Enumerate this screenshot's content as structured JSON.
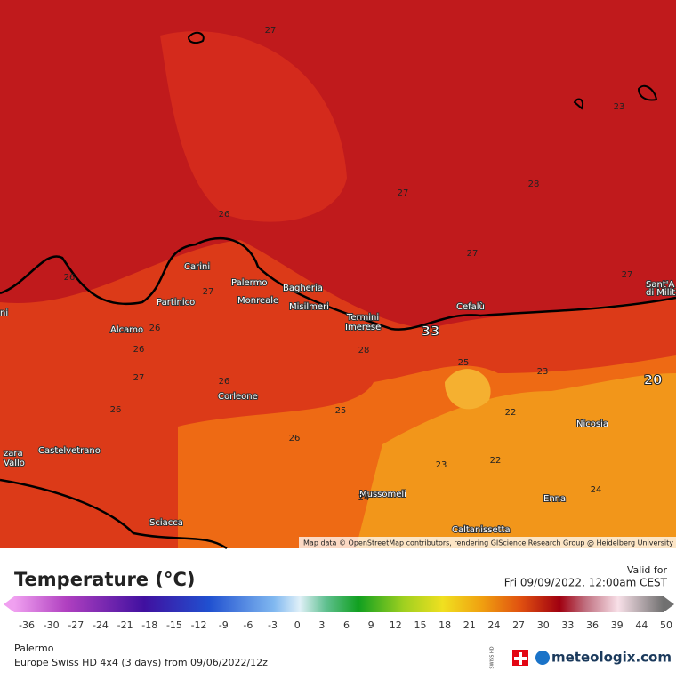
{
  "map": {
    "cities": [
      "Carini",
      "Palermo",
      "Bagheria",
      "Partinico",
      "Monreale",
      "Misilmeri",
      "Termini",
      "Imerese",
      "Cefalù",
      "Alcamo",
      "Corleone",
      "Castelvetrano",
      "zara",
      "Vallo",
      "Sciacca",
      "Mussomeli",
      "Caltanissetta",
      "Enna",
      "Nicosia",
      "Sant'A",
      "di Milit",
      "ni"
    ],
    "isolines": [
      "27",
      "26",
      "27",
      "28",
      "27",
      "27",
      "23",
      "26",
      "27",
      "26",
      "26",
      "27",
      "26",
      "25",
      "26",
      "28",
      "26",
      "25",
      "23",
      "22",
      "23",
      "22",
      "24",
      "24",
      "33",
      "20"
    ],
    "attribution": "Map data © OpenStreetMap contributors, rendering GIScience Research Group @ Heidelberg University"
  },
  "legend": {
    "title": "Temperature (°C)",
    "valid_label": "Valid for",
    "valid_time": "Fri 09/09/2022, 12:00am CEST",
    "ticks": [
      -36,
      -30,
      -27,
      -24,
      -21,
      -18,
      -15,
      -12,
      -9,
      -6,
      -3,
      0,
      3,
      6,
      9,
      12,
      15,
      18,
      21,
      24,
      27,
      30,
      33,
      36,
      39,
      44,
      50
    ]
  },
  "footer": {
    "location": "Palermo",
    "model": "Europe Swiss HD 4x4 (3 days) from 09/06/2022/12z",
    "badge": "SWISS HD",
    "brand": "meteologix.com"
  }
}
